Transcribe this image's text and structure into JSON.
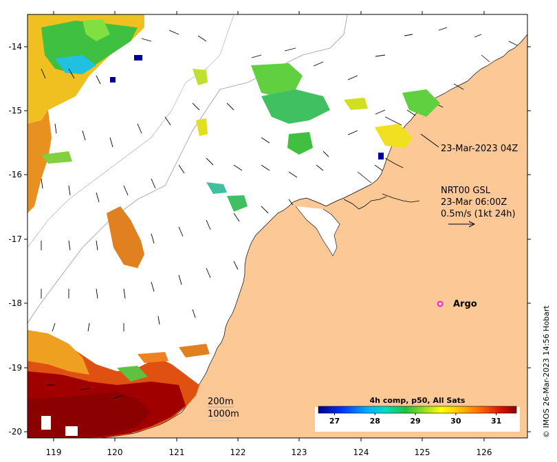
{
  "axes": {
    "x_ticks": [
      "119",
      "120",
      "121",
      "122",
      "123",
      "124",
      "125",
      "126"
    ],
    "y_ticks": [
      "-14",
      "-15",
      "-16",
      "-17",
      "-18",
      "-19",
      "-20"
    ]
  },
  "annotations": {
    "time_label": "23-Mar-2023 04Z",
    "current_model": "NRT00 GSL",
    "current_time": "23-Mar 06:00Z",
    "current_scale": "0.5m/s (1kt 24h)",
    "argo_label": "Argo",
    "contour_200": "200m",
    "contour_1000": "1000m",
    "credit": "© IMOS 26-Mar-2023 14:56 Hobart"
  },
  "colorbar": {
    "title": "4h comp, p50, All Sats",
    "ticks": [
      "27",
      "28",
      "29",
      "30",
      "31"
    ],
    "range": [
      26.6,
      31.5
    ]
  },
  "colors": {
    "land": "#fcc896",
    "sea": "#ffffff",
    "argo": "#ff00ff",
    "cold": "#00008b",
    "warm": "#8b0000"
  },
  "map": {
    "lon_range": [
      118.6,
      126.7
    ],
    "lat_range": [
      -20.2,
      -13.5
    ]
  }
}
